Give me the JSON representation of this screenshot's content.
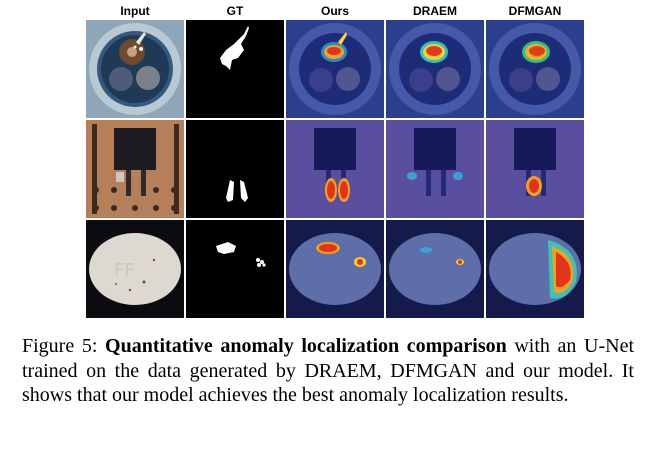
{
  "figure": {
    "columns": [
      "Input",
      "GT",
      "Ours",
      "DRAEM",
      "DFMGAN"
    ],
    "rows": [
      {
        "object": "cable"
      },
      {
        "object": "transistor"
      },
      {
        "object": "pill"
      }
    ]
  },
  "caption": {
    "label": "Figure 5:",
    "title": "Quantitative anomaly localization comparison",
    "text": "with an U-Net trained on the data generated by DRAEM, DFMGAN and our model. It shows that our model achieves the best anomaly localization results."
  }
}
